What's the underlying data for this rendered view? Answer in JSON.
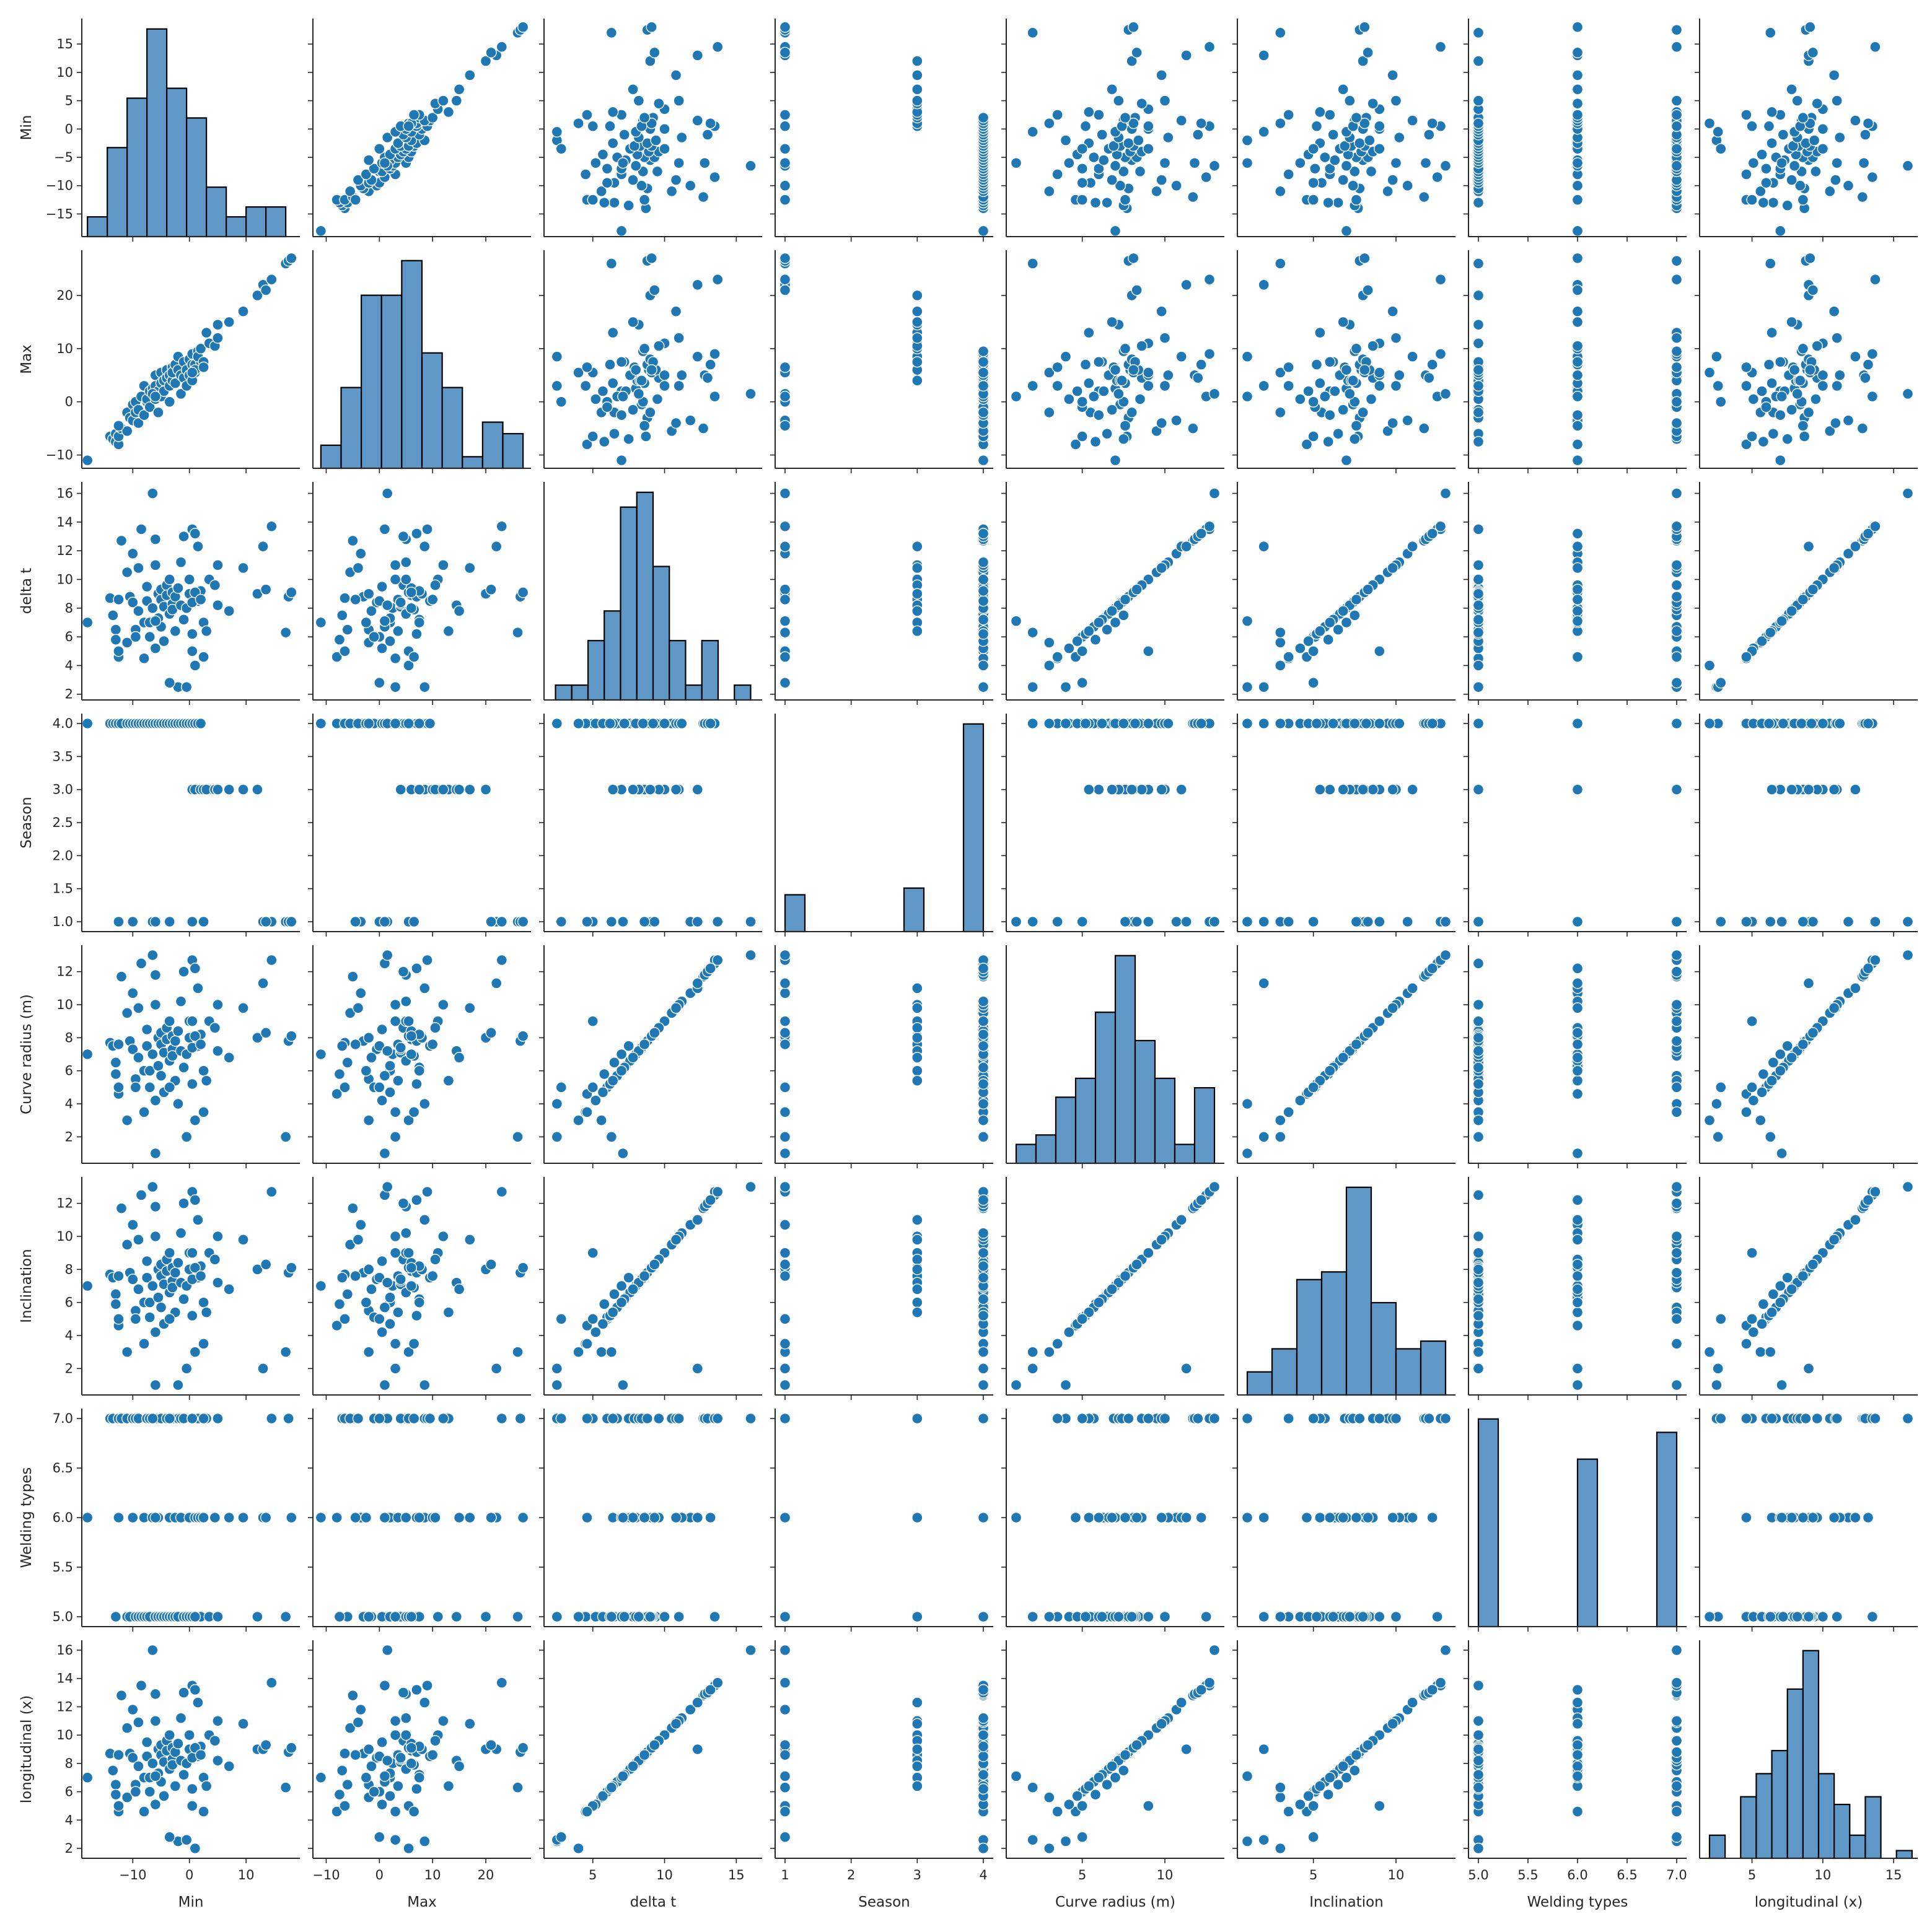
{
  "chart_data": {
    "type": "scatter",
    "title": "",
    "subtitle": "",
    "kind": "pairplot",
    "point_color": "#1f77b4",
    "hist_fill": "#5f98c6",
    "hist_edge": "#000000",
    "variables": [
      "Min",
      "Max",
      "delta t",
      "Season",
      "Curve radius (m)",
      "Inclination",
      "Welding types",
      "longitudinal (x)"
    ],
    "axes": {
      "Min": {
        "lim": [
          -19,
          19.5
        ],
        "ticks": [
          -10,
          0,
          10
        ],
        "yticks": [
          -15,
          -10,
          -5,
          0,
          5,
          10,
          15
        ]
      },
      "Max": {
        "lim": [
          -12.5,
          28.5
        ],
        "ticks": [
          -10,
          0,
          10,
          20
        ],
        "yticks": [
          -10,
          0,
          10,
          20
        ]
      },
      "delta t": {
        "lim": [
          1.6,
          16.8
        ],
        "ticks": [
          5,
          10,
          15
        ],
        "yticks": [
          2,
          4,
          6,
          8,
          10,
          12,
          14,
          16
        ]
      },
      "Season": {
        "lim": [
          0.85,
          4.15
        ],
        "ticks": [
          1,
          2,
          3,
          4
        ],
        "yticks": [
          1.0,
          1.5,
          2.0,
          2.5,
          3.0,
          3.5,
          4.0
        ],
        "ytick_labels": [
          "1.0",
          "1.5",
          "2.0",
          "2.5",
          "3.0",
          "3.5",
          "4.0"
        ]
      },
      "Curve radius (m)": {
        "lim": [
          0.4,
          13.6
        ],
        "ticks": [
          5,
          10
        ],
        "yticks": [
          2,
          4,
          6,
          8,
          10,
          12
        ]
      },
      "Inclination": {
        "lim": [
          0.4,
          13.6
        ],
        "ticks": [
          5,
          10
        ],
        "yticks": [
          2,
          4,
          6,
          8,
          10,
          12
        ]
      },
      "Welding types": {
        "lim": [
          4.9,
          7.1
        ],
        "ticks": [
          5.0,
          5.5,
          6.0,
          6.5,
          7.0
        ],
        "tick_labels": [
          "5.0",
          "5.5",
          "6.0",
          "6.5",
          "7.0"
        ],
        "yticks": [
          5.0,
          5.5,
          6.0,
          6.5,
          7.0
        ],
        "ytick_labels": [
          "5.0",
          "5.5",
          "6.0",
          "6.5",
          "7.0"
        ]
      },
      "longitudinal (x)": {
        "lim": [
          1.3,
          16.7
        ],
        "ticks": [
          5,
          10,
          15
        ],
        "yticks": [
          2,
          4,
          6,
          8,
          10,
          12,
          14,
          16
        ]
      }
    },
    "histograms": {
      "Min": {
        "edges": [
          -18,
          -14.5,
          -11,
          -7.5,
          -4,
          -0.5,
          3,
          6.5,
          10,
          13.5,
          17
        ],
        "counts": [
          2,
          9,
          14,
          21,
          15,
          12,
          5,
          2,
          3,
          3
        ]
      },
      "Max": {
        "edges": [
          -11,
          -7.2,
          -3.4,
          0.4,
          4.2,
          8,
          11.8,
          15.6,
          19.4,
          23.2,
          27
        ],
        "counts": [
          2,
          7,
          15,
          15,
          18,
          10,
          7,
          1,
          4,
          3
        ]
      },
      "delta t": {
        "edges": [
          2.4,
          3.76,
          5.12,
          6.48,
          7.84,
          9.2,
          10.56,
          11.92,
          13.28,
          14.64,
          16
        ],
        "counts": [
          1,
          1,
          4,
          6,
          13,
          14,
          9,
          4,
          1,
          4,
          0,
          1
        ]
      },
      "Season": {
        "edges": [
          1,
          1.3,
          1.6,
          1.9,
          2.2,
          2.5,
          2.8,
          3.1,
          3.4,
          3.7,
          4
        ],
        "counts": [
          11,
          0,
          0,
          0,
          0,
          0,
          13,
          0,
          0,
          62
        ]
      },
      "Curve radius (m)": {
        "edges": [
          1,
          2.2,
          3.4,
          4.6,
          5.8,
          7,
          8.2,
          9.4,
          10.6,
          11.8,
          13
        ],
        "counts": [
          2,
          3,
          7,
          9,
          16,
          22,
          13,
          9,
          2,
          8
        ]
      },
      "Inclination": {
        "edges": [
          1,
          2.5,
          4,
          5.5,
          7,
          8.5,
          10,
          11.5,
          13
        ],
        "counts": [
          3,
          6,
          15,
          16,
          27,
          12,
          6,
          7
        ]
      },
      "Welding types": {
        "edges": [
          5,
          5.2,
          5.4,
          5.6,
          5.8,
          6,
          6.2,
          6.4,
          6.6,
          6.8,
          7
        ],
        "counts": [
          31,
          0,
          0,
          0,
          0,
          25,
          0,
          0,
          0,
          29
        ]
      },
      "longitudinal (x)": {
        "edges": [
          2,
          3.1,
          4.2,
          5.3,
          6.4,
          7.5,
          8.6,
          9.7,
          10.8,
          11.9,
          13,
          14.1,
          15.2,
          16.3
        ],
        "counts": [
          3,
          0,
          8,
          11,
          14,
          22,
          27,
          11,
          7,
          3,
          8,
          0,
          1
        ]
      }
    },
    "points": [
      [
        -18,
        -11,
        7.0,
        4,
        7.0,
        7.0,
        6,
        7.0
      ],
      [
        -14,
        -6.5,
        8.7,
        4,
        7.7,
        7.7,
        7,
        8.7
      ],
      [
        -13.5,
        -7,
        7.5,
        4,
        7.5,
        7.5,
        7,
        7.5
      ],
      [
        -13,
        -6,
        6.5,
        4,
        6.5,
        6.5,
        5,
        6.5
      ],
      [
        -13,
        -7.5,
        5.8,
        4,
        5.8,
        5.9,
        5,
        5.8
      ],
      [
        -12.5,
        -8,
        4.6,
        4,
        4.6,
        4.6,
        6,
        4.6
      ],
      [
        -12.5,
        -6.5,
        5.0,
        4,
        5.0,
        5.0,
        7,
        5.0
      ],
      [
        -12,
        -5,
        12.7,
        4,
        11.7,
        11.7,
        7,
        12.8
      ],
      [
        -11,
        -5.5,
        10.5,
        4,
        9.5,
        9.5,
        7,
        10.5
      ],
      [
        -11,
        -2,
        5.6,
        4,
        3.0,
        3.0,
        5,
        5.6
      ],
      [
        -10.5,
        -3,
        8.8,
        4,
        7.8,
        7.8,
        5,
        8.7
      ],
      [
        -10,
        -0.5,
        8.4,
        4,
        7.3,
        7.4,
        7,
        8.4
      ],
      [
        -10,
        -3.5,
        11.8,
        1,
        10.7,
        10.7,
        6,
        11.8
      ],
      [
        -9.5,
        -2,
        6.5,
        4,
        5.5,
        5.5,
        5,
        6.5
      ],
      [
        -9.5,
        0,
        6.0,
        4,
        5.0,
        5.0,
        7,
        6.0
      ],
      [
        -9,
        -1.5,
        7.8,
        4,
        6.8,
        6.8,
        5,
        7.8
      ],
      [
        -9,
        -4,
        10.8,
        4,
        9.8,
        9.8,
        7,
        10.9
      ],
      [
        -8.5,
        1,
        13.5,
        4,
        12.5,
        12.5,
        5,
        13.5
      ],
      [
        -8,
        -2.5,
        7.0,
        4,
        6.0,
        6.0,
        6,
        7.0
      ],
      [
        -8,
        3,
        4.5,
        4,
        3.5,
        3.5,
        5,
        4.6
      ],
      [
        -7.5,
        0,
        8.5,
        4,
        7.5,
        7.5,
        7,
        8.5
      ],
      [
        -7.5,
        0.5,
        9.5,
        4,
        8.5,
        8.5,
        5,
        9.5
      ],
      [
        -7,
        2,
        7.0,
        4,
        6.0,
        6.0,
        5,
        7.0
      ],
      [
        -7,
        -1,
        6.0,
        4,
        5.0,
        5.1,
        7,
        6.0
      ],
      [
        -6.5,
        2.5,
        8.0,
        4,
        7.0,
        7.0,
        6,
        8.0
      ],
      [
        -6,
        3,
        11.0,
        4,
        10.0,
        10.0,
        5,
        11.0
      ],
      [
        -6,
        0.5,
        5.2,
        4,
        4.2,
        4.2,
        5,
        5.1
      ],
      [
        -6,
        5,
        12.8,
        4,
        11.8,
        11.8,
        7,
        12.9
      ],
      [
        -5.5,
        -2,
        9.0,
        4,
        8.0,
        8.0,
        5,
        9.0
      ],
      [
        -5.5,
        2,
        7.3,
        4,
        6.3,
        6.3,
        6,
        7.3
      ],
      [
        -5,
        3.5,
        8.6,
        4,
        7.6,
        7.6,
        5,
        8.6
      ],
      [
        -5,
        1,
        6.7,
        4,
        5.7,
        5.7,
        7,
        6.7
      ],
      [
        -5,
        5.5,
        9.3,
        4,
        8.3,
        8.3,
        5,
        9.3
      ],
      [
        -4.5,
        4,
        8.1,
        4,
        7.1,
        7.1,
        5,
        8.1
      ],
      [
        -4.5,
        2,
        5.7,
        4,
        4.7,
        4.7,
        5,
        5.7
      ],
      [
        -4,
        4.5,
        9.6,
        4,
        8.6,
        8.6,
        7,
        9.6
      ],
      [
        -4,
        6,
        8.9,
        4,
        7.9,
        7.9,
        5,
        8.9
      ],
      [
        -3.5,
        5,
        7.6,
        4,
        6.6,
        6.6,
        6,
        7.6
      ],
      [
        -3.5,
        3,
        10.0,
        4,
        9.0,
        9.0,
        5,
        10.0
      ],
      [
        -3,
        4,
        8.3,
        4,
        7.3,
        7.3,
        5,
        8.3
      ],
      [
        -3,
        6.5,
        7.9,
        4,
        6.9,
        6.9,
        7,
        7.9
      ],
      [
        -3,
        5.5,
        9.1,
        4,
        8.1,
        8.1,
        5,
        9.1
      ],
      [
        -2.5,
        3.5,
        6.4,
        4,
        5.4,
        5.4,
        6,
        6.4
      ],
      [
        -2.5,
        7,
        8.8,
        4,
        7.8,
        7.8,
        5,
        8.8
      ],
      [
        -2,
        8.5,
        2.5,
        4,
        4.0,
        1.0,
        7,
        2.5
      ],
      [
        -2,
        6,
        9.4,
        4,
        8.4,
        8.4,
        5,
        9.4
      ],
      [
        -1.5,
        1.5,
        8.2,
        4,
        7.2,
        7.2,
        7,
        8.2
      ],
      [
        -1.5,
        5,
        11.2,
        4,
        10.2,
        10.2,
        6,
        11.2
      ],
      [
        -1,
        7.5,
        7.2,
        4,
        6.2,
        6.2,
        5,
        7.2
      ],
      [
        -1,
        4.5,
        13.0,
        4,
        12.0,
        12.0,
        7,
        13.0
      ],
      [
        -0.5,
        6,
        8.0,
        4,
        7.0,
        7.0,
        5,
        8.0
      ],
      [
        -0.5,
        3,
        2.5,
        4,
        2.0,
        2.0,
        5,
        2.6
      ],
      [
        0,
        8,
        9.0,
        4,
        8.0,
        8.0,
        6,
        9.0
      ],
      [
        0,
        5,
        10.0,
        4,
        9.0,
        9.0,
        5,
        10.0
      ],
      [
        0.5,
        9,
        13.5,
        4,
        12.7,
        12.7,
        7,
        13.5
      ],
      [
        0.5,
        7,
        6.2,
        4,
        5.2,
        5.2,
        5,
        6.2
      ],
      [
        1,
        7,
        13.2,
        4,
        12.2,
        12.2,
        6,
        13.2
      ],
      [
        1,
        5.5,
        4.0,
        4,
        3.0,
        3.0,
        5,
        2.0
      ],
      [
        1.5,
        9.5,
        8.5,
        4,
        7.5,
        7.5,
        7,
        8.5
      ],
      [
        2,
        7.5,
        9.2,
        4,
        8.2,
        8.2,
        5,
        9.2
      ],
      [
        1.5,
        8.5,
        12.3,
        3,
        11.0,
        11.0,
        6,
        12.3
      ],
      [
        0.5,
        4,
        8.4,
        3,
        7.4,
        7.4,
        7,
        8.4
      ],
      [
        1,
        6,
        9.1,
        3,
        8.1,
        8.1,
        5,
        9.1
      ],
      [
        2,
        10,
        8.6,
        3,
        7.6,
        7.6,
        6,
        8.6
      ],
      [
        2.5,
        7.5,
        7.0,
        3,
        6.0,
        6.0,
        6,
        7.0
      ],
      [
        3.5,
        11,
        10.0,
        3,
        9.0,
        9.0,
        5,
        10.0
      ],
      [
        3,
        13,
        6.4,
        3,
        5.4,
        5.4,
        7,
        6.4
      ],
      [
        4.5,
        10.5,
        9.6,
        3,
        8.6,
        8.6,
        6,
        9.6
      ],
      [
        5,
        14.5,
        8.2,
        3,
        7.2,
        7.2,
        5,
        8.2
      ],
      [
        5,
        12,
        11.0,
        3,
        10.0,
        10.0,
        7,
        11.0
      ],
      [
        7,
        15,
        7.8,
        3,
        6.8,
        6.8,
        6,
        7.8
      ],
      [
        9.5,
        17,
        10.8,
        3,
        9.8,
        9.8,
        6,
        10.8
      ],
      [
        12,
        20,
        9.0,
        3,
        8.0,
        8.0,
        5,
        9.0
      ],
      [
        13,
        22,
        12.3,
        1,
        11.3,
        2.0,
        6,
        9.0
      ],
      [
        14.5,
        23,
        13.7,
        1,
        12.7,
        12.7,
        7,
        13.7
      ],
      [
        17,
        26,
        6.3,
        1,
        2.0,
        3.0,
        5,
        6.3
      ],
      [
        17.5,
        26.5,
        8.8,
        1,
        7.8,
        7.8,
        7,
        8.8
      ],
      [
        18,
        27,
        9.1,
        1,
        8.1,
        8.1,
        6,
        9.1
      ],
      [
        13.5,
        21,
        9.3,
        1,
        8.3,
        8.3,
        6,
        9.3
      ],
      [
        0.5,
        5.5,
        5.0,
        1,
        9.0,
        9.0,
        7,
        5.0
      ],
      [
        2.5,
        6.5,
        4.6,
        1,
        3.5,
        3.5,
        7,
        4.6
      ],
      [
        -6.5,
        1.5,
        16.0,
        1,
        13.0,
        13.0,
        7,
        16.0
      ],
      [
        -12.5,
        -4.5,
        8.6,
        1,
        7.6,
        7.6,
        6,
        8.6
      ],
      [
        -3.5,
        0,
        2.8,
        1,
        5.0,
        5.0,
        7,
        2.8
      ],
      [
        -6,
        1,
        7.1,
        1,
        1.0,
        1.0,
        6,
        7.1
      ]
    ]
  }
}
